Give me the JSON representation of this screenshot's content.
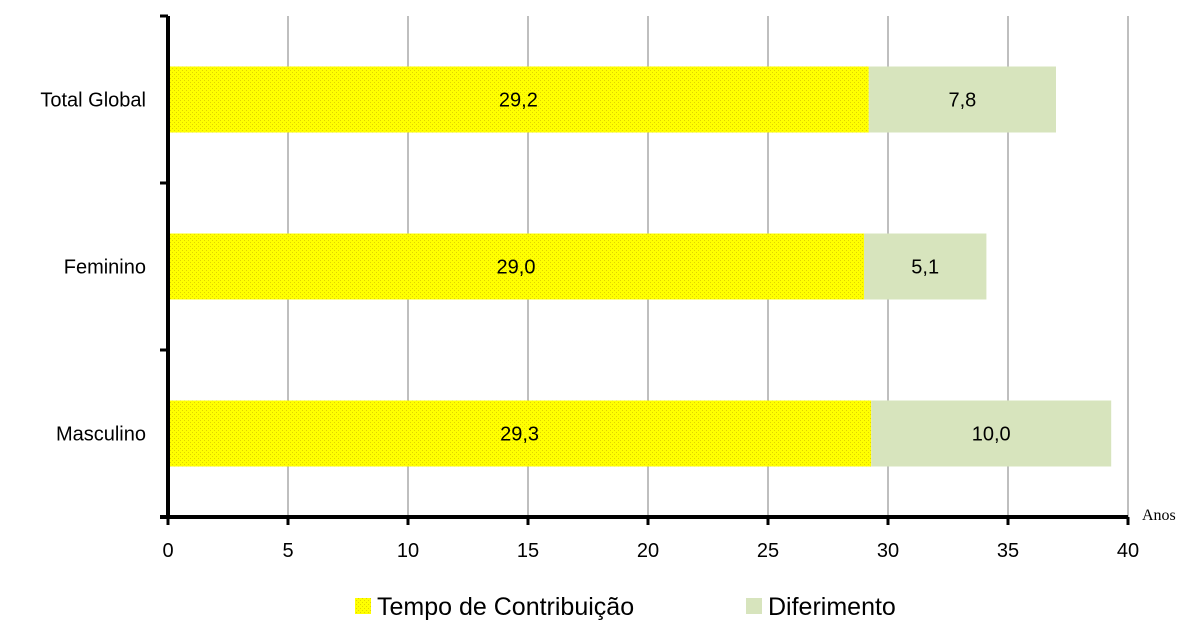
{
  "chart_data": {
    "type": "bar",
    "orientation": "horizontal",
    "stacked": true,
    "categories": [
      "Total Global",
      "Feminino",
      "Masculino"
    ],
    "series": [
      {
        "name": "Tempo de Contribuição",
        "values": [
          29.2,
          29.0,
          29.3
        ],
        "labels": [
          "29,2",
          "29,0",
          "29,3"
        ],
        "color": "#ffff00",
        "pattern": "dotted"
      },
      {
        "name": "Diferimento",
        "values": [
          7.8,
          5.1,
          10.0
        ],
        "labels": [
          "7,8",
          "5,1",
          "10,0"
        ],
        "color": "#d7e4bd"
      }
    ],
    "xlim": [
      0,
      40
    ],
    "xticks": [
      0,
      5,
      10,
      15,
      20,
      25,
      30,
      35,
      40
    ],
    "xtick_labels": [
      "0",
      "5",
      "10",
      "15",
      "20",
      "25",
      "30",
      "35",
      "40"
    ],
    "xlabel": "Anos",
    "ylabel": "",
    "title": "",
    "grid": "vertical",
    "legend_position": "bottom"
  }
}
